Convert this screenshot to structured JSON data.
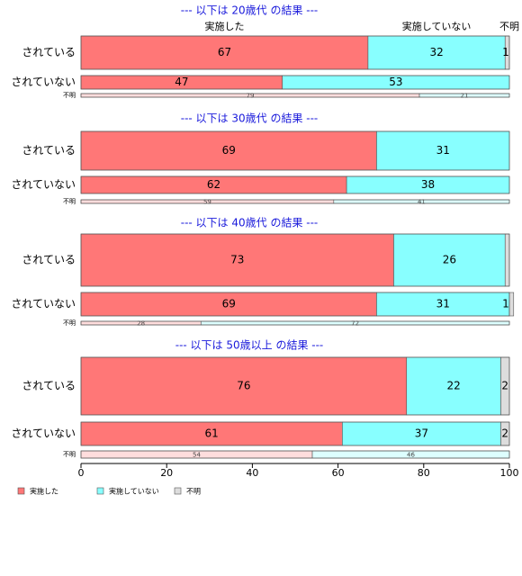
{
  "chart_data": {
    "type": "bar",
    "orientation": "horizontal",
    "stacked": true,
    "xlim": [
      0,
      100
    ],
    "x_ticks": [
      "0",
      "20",
      "40",
      "60",
      "80",
      "100"
    ],
    "header_labels": [
      "実施した",
      "実施していない",
      "不明"
    ],
    "legend": {
      "placement": "bottom-left",
      "items": [
        {
          "name": "実施した",
          "color": "#ff7777"
        },
        {
          "name": "実施していない",
          "color": "#88ffff"
        },
        {
          "name": "不明",
          "color": "#dddddd"
        }
      ]
    },
    "colors": {
      "implemented": "#ff7777",
      "not_implemented": "#88ffff",
      "unknown": "#dddddd",
      "implemented_light": "#ffdddd",
      "not_implemented_light": "#ddffff",
      "title": "#1a1adb"
    },
    "panels": [
      {
        "title": "--- 以下は 20歳代 の結果 ---",
        "rows": [
          {
            "label": "されている",
            "values": [
              67,
              32,
              1
            ],
            "value_labels": [
              "67",
              "32",
              "1"
            ]
          },
          {
            "label": "されていない",
            "values": [
              47,
              53,
              0
            ],
            "value_labels": [
              "47",
              "53",
              ""
            ]
          },
          {
            "label": "不明",
            "values": [
              79,
              21,
              0
            ],
            "value_labels": [
              "79",
              "21",
              ""
            ],
            "thin": true
          }
        ]
      },
      {
        "title": "--- 以下は 30歳代 の結果 ---",
        "rows": [
          {
            "label": "されている",
            "values": [
              69,
              31,
              0
            ],
            "value_labels": [
              "69",
              "31",
              ""
            ]
          },
          {
            "label": "されていない",
            "values": [
              62,
              38,
              0
            ],
            "value_labels": [
              "62",
              "38",
              ""
            ]
          },
          {
            "label": "不明",
            "values": [
              59,
              41,
              0
            ],
            "value_labels": [
              "59",
              "41",
              ""
            ],
            "thin": true
          }
        ]
      },
      {
        "title": "--- 以下は 40歳代 の結果 ---",
        "rows": [
          {
            "label": "されている",
            "values": [
              73,
              26,
              1
            ],
            "value_labels": [
              "73",
              "26",
              ""
            ]
          },
          {
            "label": "されていない",
            "values": [
              69,
              31,
              1
            ],
            "value_labels": [
              "69",
              "31",
              "1"
            ]
          },
          {
            "label": "不明",
            "values": [
              28,
              72,
              0
            ],
            "value_labels": [
              "28",
              "72",
              ""
            ],
            "thin": true
          }
        ]
      },
      {
        "title": "--- 以下は 50歳以上 の結果 ---",
        "rows": [
          {
            "label": "されている",
            "values": [
              76,
              22,
              2
            ],
            "value_labels": [
              "76",
              "22",
              "2"
            ]
          },
          {
            "label": "されていない",
            "values": [
              61,
              37,
              2
            ],
            "value_labels": [
              "61",
              "37",
              "2"
            ]
          },
          {
            "label": "不明",
            "values": [
              54,
              46,
              0
            ],
            "value_labels": [
              "54",
              "46",
              ""
            ],
            "thin": true
          }
        ]
      }
    ]
  }
}
